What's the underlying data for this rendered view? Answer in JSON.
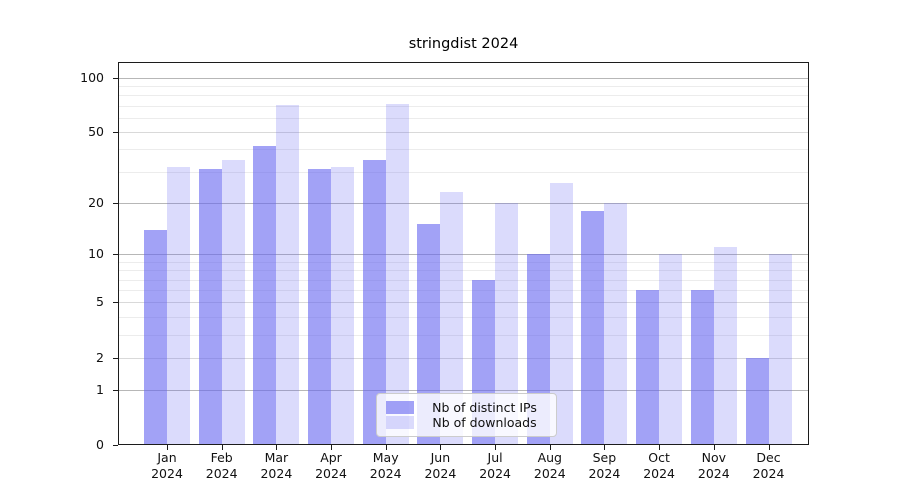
{
  "chart_data": {
    "type": "bar",
    "title": "stringdist 2024",
    "yscale": "log1p",
    "ylim": [
      0,
      122
    ],
    "grid": "on",
    "legend_position": "bottom-center",
    "y_ticks": [
      0,
      1,
      2,
      5,
      10,
      20,
      50,
      100
    ],
    "y_minor_ticks": [
      3,
      4,
      6,
      7,
      8,
      9,
      30,
      40,
      60,
      70,
      80,
      90
    ],
    "categories": [
      {
        "label": "Jan",
        "sub": "2024"
      },
      {
        "label": "Feb",
        "sub": "2024"
      },
      {
        "label": "Mar",
        "sub": "2024"
      },
      {
        "label": "Apr",
        "sub": "2024"
      },
      {
        "label": "May",
        "sub": "2024"
      },
      {
        "label": "Jun",
        "sub": "2024"
      },
      {
        "label": "Jul",
        "sub": "2024"
      },
      {
        "label": "Aug",
        "sub": "2024"
      },
      {
        "label": "Sep",
        "sub": "2024"
      },
      {
        "label": "Oct",
        "sub": "2024"
      },
      {
        "label": "Nov",
        "sub": "2024"
      },
      {
        "label": "Dec",
        "sub": "2024"
      }
    ],
    "series": [
      {
        "name": "Nb of distinct IPs",
        "color": "rgba(100,100,240,0.6)",
        "values": [
          14,
          31,
          42,
          31,
          35,
          15,
          7,
          10,
          18,
          6,
          6,
          2
        ]
      },
      {
        "name": "Nb of downloads",
        "color": "rgba(100,100,240,0.23)",
        "values": [
          32,
          35,
          71,
          32,
          72,
          23,
          20,
          26,
          20,
          10,
          11,
          10
        ]
      }
    ],
    "colors": {
      "spine": "#1c1c1c",
      "grid_major": "#b7b7b7",
      "grid_minor": "#ececec",
      "background": "#ffffff"
    }
  }
}
